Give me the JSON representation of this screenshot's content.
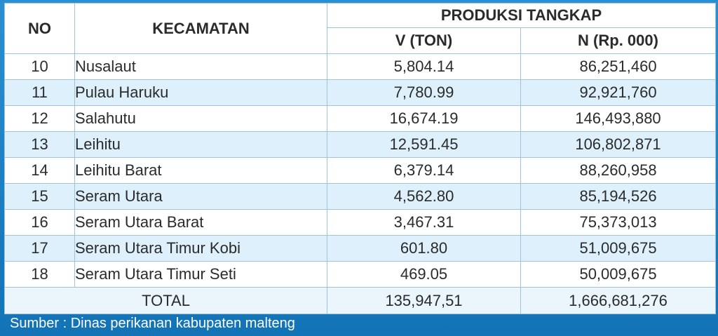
{
  "header": {
    "no": "NO",
    "kecamatan": "KECAMATAN",
    "produksi": "PRODUKSI TANGKAP",
    "volume": "V (TON)",
    "nilai": "N (Rp.  000)"
  },
  "rows": [
    {
      "no": "10",
      "kecamatan": "Nusalaut",
      "volume": "5,804.14",
      "nilai": "86,251,460"
    },
    {
      "no": "11",
      "kecamatan": "Pulau Haruku",
      "volume": "7,780.99",
      "nilai": "92,921,760"
    },
    {
      "no": "12",
      "kecamatan": "Salahutu",
      "volume": "16,674.19",
      "nilai": "146,493,880"
    },
    {
      "no": "13",
      "kecamatan": "Leihitu",
      "volume": "12,591.45",
      "nilai": "106,802,871"
    },
    {
      "no": "14",
      "kecamatan": "Leihitu Barat",
      "volume": "6,379.14",
      "nilai": "88,260,958"
    },
    {
      "no": "15",
      "kecamatan": "Seram Utara",
      "volume": "4,562.80",
      "nilai": "85,194,526"
    },
    {
      "no": "16",
      "kecamatan": "Seram Utara Barat",
      "volume": "3,467.31",
      "nilai": "75,373,013"
    },
    {
      "no": "17",
      "kecamatan": "Seram Utara Timur Kobi",
      "volume": "601.80",
      "nilai": "51,009,675"
    },
    {
      "no": "18",
      "kecamatan": "Seram Utara Timur Seti",
      "volume": "469.05",
      "nilai": "50,009,675"
    }
  ],
  "total": {
    "label": "TOTAL",
    "volume": "135,947,51",
    "nilai": "1,666,681,276"
  },
  "source": "Sumber : Dinas perikanan kabupaten malteng",
  "colors": {
    "header_text": "#1b84c4",
    "alt_row": "#def0fb",
    "background": "#1a7fc1"
  }
}
